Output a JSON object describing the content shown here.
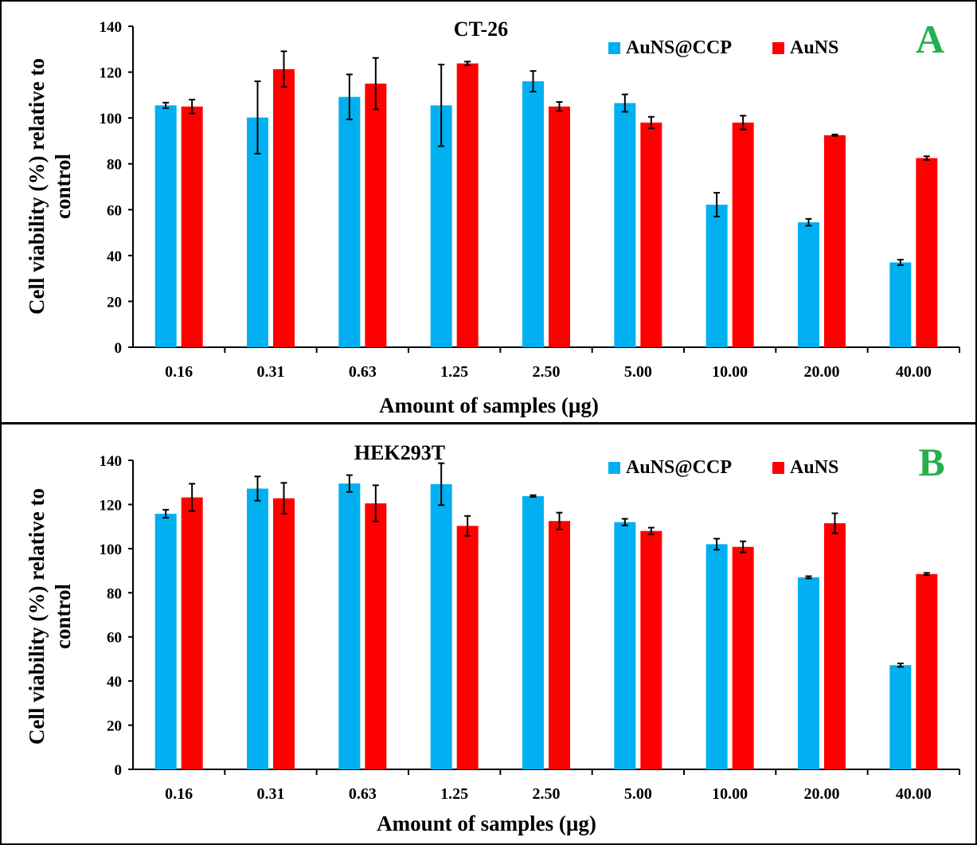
{
  "chart_data": [
    {
      "type": "bar",
      "panel_letter": "A",
      "title": "CT-26",
      "xlabel": "Amount of samples (µg)",
      "ylabel_lines": [
        "Cell viability (%) relative to",
        "control"
      ],
      "ylim": [
        0,
        140
      ],
      "yticks": [
        "0",
        "20",
        "40",
        "60",
        "80",
        "100",
        "120",
        "140"
      ],
      "categories": [
        "0.16",
        "0.31",
        "0.63",
        "1.25",
        "2.50",
        "5.00",
        "10.00",
        "20.00",
        "40.00"
      ],
      "legend_position": "top-right",
      "series": [
        {
          "name": "AuNS@CCP",
          "color": "#00B0F0",
          "values": [
            105.5,
            100.2,
            109.2,
            105.5,
            116.0,
            106.5,
            62.2,
            54.5,
            37.0
          ],
          "errors": [
            1.2,
            15.8,
            9.8,
            17.8,
            4.5,
            3.8,
            5.2,
            1.5,
            1.2
          ]
        },
        {
          "name": "AuNS",
          "color": "#FF0000",
          "values": [
            105.0,
            121.3,
            115.0,
            123.8,
            105.0,
            98.0,
            98.0,
            92.5,
            82.5
          ],
          "errors": [
            3.0,
            7.8,
            11.2,
            0.8,
            2.0,
            2.5,
            3.0,
            0.3,
            0.8
          ]
        }
      ]
    },
    {
      "type": "bar",
      "panel_letter": "B",
      "title": "HEK293T",
      "xlabel": "Amount of samples (µg)",
      "ylabel_lines": [
        "Cell viability (%) relative to",
        "control"
      ],
      "ylim": [
        0,
        140
      ],
      "yticks": [
        "0",
        "20",
        "40",
        "60",
        "80",
        "100",
        "120",
        "140"
      ],
      "categories": [
        "0.16",
        "0.31",
        "0.63",
        "1.25",
        "2.50",
        "5.00",
        "10.00",
        "20.00",
        "40.00"
      ],
      "legend_position": "top-right",
      "series": [
        {
          "name": "AuNS@CCP",
          "color": "#00B0F0",
          "values": [
            115.8,
            127.2,
            129.5,
            129.2,
            123.8,
            112.0,
            102.0,
            87.0,
            47.2
          ],
          "errors": [
            1.8,
            5.5,
            3.8,
            9.5,
            0.4,
            1.5,
            2.5,
            0.5,
            0.8
          ]
        },
        {
          "name": "AuNS",
          "color": "#FF0000",
          "values": [
            123.2,
            122.8,
            120.5,
            110.3,
            112.5,
            108.0,
            100.8,
            111.5,
            88.5
          ],
          "errors": [
            6.2,
            7.0,
            8.2,
            4.5,
            3.8,
            1.5,
            2.5,
            4.5,
            0.5
          ]
        }
      ]
    }
  ],
  "colors": {
    "panel_letter": "#22B14C",
    "frame": "#000000"
  }
}
